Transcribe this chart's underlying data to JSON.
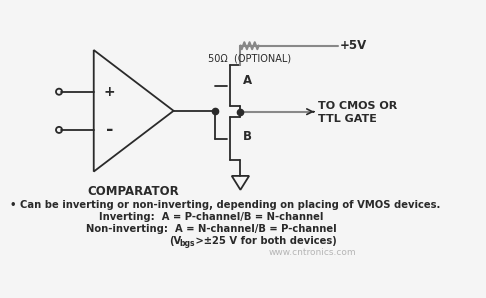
{
  "bg_color": "#f5f5f5",
  "line_color": "#2a2a2a",
  "gray_color": "#888888",
  "comparator_label": "COMPARATOR",
  "plus_label": "+",
  "minus_label": "-",
  "vdd_label": "+5V",
  "resistor_label": "50Ω  (OPTIONAL)",
  "output_label_1": "TO CMOS OR",
  "output_label_2": "TTL GATE",
  "node_A_label": "A",
  "node_B_label": "B",
  "bullet_text": "• Can be inverting or non-inverting, depending on placing of VMOS devices.",
  "inv_text": "Inverting:  A = P-channel/B = N-channel",
  "noninv_text": "Non-inverting:  A = N-channel/B = P-channel",
  "vbgs_pre": "(V",
  "vbgs_sub": "bgs",
  "vbgs_post": " >±25 V for both devices)",
  "watermark": "www.cntronics.com"
}
